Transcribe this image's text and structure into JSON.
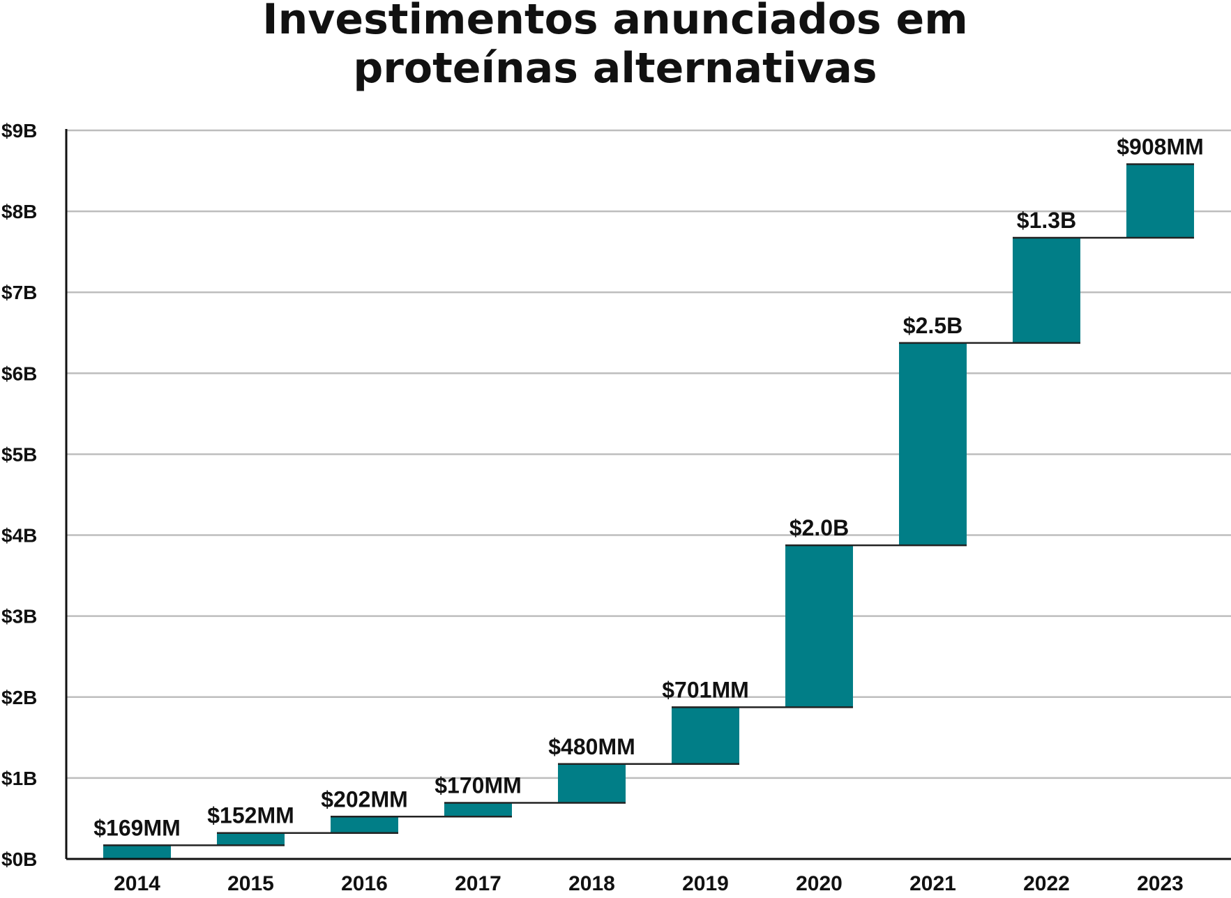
{
  "chart_data": {
    "type": "waterfall",
    "title_lines": [
      "Investimentos anunciados em",
      "proteínas alternativas"
    ],
    "xlabel": "",
    "ylabel": "",
    "categories": [
      "2014",
      "2015",
      "2016",
      "2017",
      "2018",
      "2019",
      "2020",
      "2021",
      "2022",
      "2023"
    ],
    "values": [
      0.169,
      0.152,
      0.202,
      0.17,
      0.48,
      0.701,
      2.0,
      2.5,
      1.3,
      0.908
    ],
    "value_labels": [
      "$169MM",
      "$152MM",
      "$202MM",
      "$170MM",
      "$480MM",
      "$701MM",
      "$2.0B",
      "$2.5B",
      "$1.3B",
      "$908MM"
    ],
    "ylim": [
      0,
      9
    ],
    "yticks": [
      0,
      1,
      2,
      3,
      4,
      5,
      6,
      7,
      8,
      9
    ],
    "ytick_labels": [
      "$0B",
      "$1B",
      "$2B",
      "$3B",
      "$4B",
      "$5B",
      "$6B",
      "$7B",
      "$8B",
      "$9B"
    ],
    "y_unit": "billions USD",
    "bar_color": "#017e87",
    "grid": true,
    "legend": "none"
  }
}
